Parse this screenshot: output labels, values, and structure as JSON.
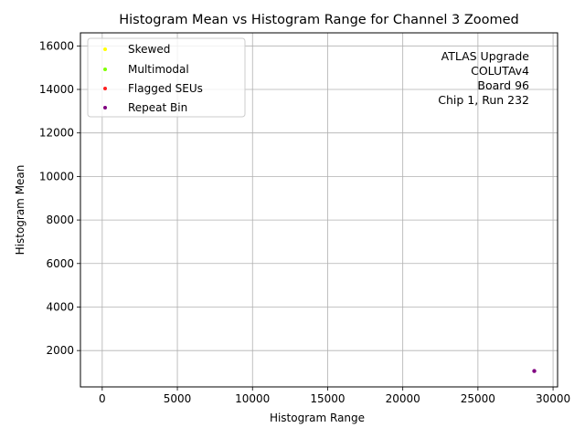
{
  "chart_data": {
    "type": "scatter",
    "title": "Histogram Mean vs Histogram Range for Channel 3 Zoomed",
    "xlabel": "Histogram Range",
    "ylabel": "Histogram Mean",
    "xlim": [
      -1450,
      30300
    ],
    "ylim": [
      330,
      16600
    ],
    "xticks": [
      0,
      5000,
      10000,
      15000,
      20000,
      25000,
      30000
    ],
    "yticks": [
      2000,
      4000,
      6000,
      8000,
      10000,
      12000,
      14000,
      16000
    ],
    "grid": true,
    "legend_position": "upper-left",
    "series": [
      {
        "name": "Skewed",
        "color": "#ffff00",
        "points": []
      },
      {
        "name": "Multimodal",
        "color": "#7fff00",
        "points": []
      },
      {
        "name": "Flagged SEUs",
        "color": "#ff2020",
        "points": []
      },
      {
        "name": "Repeat Bin",
        "color": "#800080",
        "points": [
          [
            28750,
            1060
          ]
        ]
      }
    ],
    "annotation": [
      "ATLAS Upgrade",
      "COLUTAv4",
      "Board 96",
      "Chip 1, Run 232"
    ]
  }
}
